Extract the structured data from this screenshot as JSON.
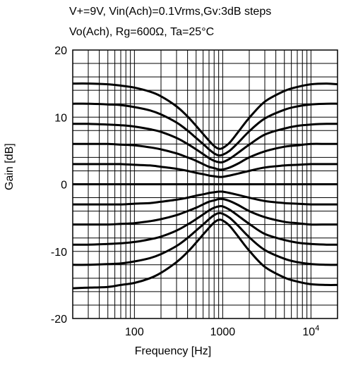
{
  "chart_data": {
    "type": "line",
    "title": "V+=9V, Vin(Ach)=0.1Vrms,Gv:3dB steps",
    "subtitle": "Vo(Ach), Rg=600Ω, Ta=25°C",
    "xlabel": "Frequency  [Hz]",
    "ylabel": "Gain  [dB]",
    "xscale": "log",
    "xlim": [
      20,
      20000
    ],
    "ylim": [
      -20,
      20
    ],
    "grid": true,
    "yticks": [
      {
        "value": 20,
        "label": "20"
      },
      {
        "value": 10,
        "label": "10"
      },
      {
        "value": 0,
        "label": "0"
      },
      {
        "value": -10,
        "label": "-10"
      },
      {
        "value": -20,
        "label": "-20"
      }
    ],
    "xticks": [
      {
        "value": 100,
        "label": "100"
      },
      {
        "value": 1000,
        "label": "1000"
      },
      {
        "value": 10000,
        "label": "10",
        "sup": "4"
      }
    ],
    "x": [
      20,
      30,
      50,
      70,
      100,
      150,
      200,
      300,
      400,
      500,
      600,
      700,
      800,
      900,
      1000,
      1200,
      1500,
      2000,
      3000,
      5000,
      7000,
      10000,
      15000,
      20000
    ],
    "series": [
      {
        "values": [
          15.0,
          15.0,
          14.9,
          14.7,
          14.4,
          13.8,
          13.1,
          11.6,
          10.1,
          8.7,
          7.5,
          6.5,
          5.7,
          5.3,
          5.4,
          6.2,
          7.8,
          9.9,
          12.3,
          13.9,
          14.5,
          14.9,
          15.0,
          14.9
        ]
      },
      {
        "values": [
          12.0,
          12.0,
          11.9,
          11.8,
          11.5,
          11.0,
          10.4,
          9.2,
          8.0,
          6.9,
          6.0,
          5.2,
          4.6,
          4.3,
          4.4,
          5.0,
          6.2,
          7.9,
          9.8,
          11.1,
          11.6,
          11.9,
          12.0,
          12.0
        ]
      },
      {
        "values": [
          9.0,
          9.0,
          8.9,
          8.8,
          8.6,
          8.2,
          7.8,
          6.9,
          6.0,
          5.2,
          4.5,
          3.9,
          3.5,
          3.3,
          3.3,
          3.8,
          4.7,
          5.9,
          7.4,
          8.3,
          8.7,
          8.9,
          9.0,
          9.0
        ]
      },
      {
        "values": [
          6.0,
          6.0,
          6.0,
          5.9,
          5.8,
          5.5,
          5.2,
          4.6,
          4.0,
          3.5,
          3.0,
          2.6,
          2.4,
          2.2,
          2.2,
          2.5,
          3.1,
          4.0,
          4.9,
          5.6,
          5.8,
          6.0,
          6.0,
          6.0
        ]
      },
      {
        "values": [
          3.0,
          3.0,
          3.0,
          3.0,
          2.9,
          2.8,
          2.6,
          2.3,
          2.0,
          1.7,
          1.5,
          1.3,
          1.2,
          1.1,
          1.1,
          1.3,
          1.6,
          2.0,
          2.5,
          2.8,
          2.9,
          3.0,
          3.0,
          3.0
        ]
      },
      {
        "values": [
          0.0,
          0.0,
          0.0,
          0.0,
          0.0,
          0.0,
          0.0,
          0.0,
          0.0,
          0.0,
          0.0,
          0.0,
          0.0,
          0.0,
          0.0,
          0.0,
          0.0,
          0.0,
          0.0,
          0.0,
          0.0,
          0.0,
          0.0,
          0.0
        ]
      },
      {
        "values": [
          -3.0,
          -3.0,
          -3.0,
          -3.0,
          -2.9,
          -2.8,
          -2.6,
          -2.3,
          -2.0,
          -1.7,
          -1.5,
          -1.3,
          -1.2,
          -1.1,
          -1.1,
          -1.3,
          -1.6,
          -2.0,
          -2.5,
          -2.8,
          -2.9,
          -3.0,
          -3.0,
          -3.0
        ]
      },
      {
        "values": [
          -6.0,
          -6.0,
          -6.0,
          -5.9,
          -5.8,
          -5.5,
          -5.2,
          -4.6,
          -4.0,
          -3.5,
          -3.0,
          -2.6,
          -2.4,
          -2.2,
          -2.2,
          -2.5,
          -3.1,
          -4.0,
          -4.9,
          -5.6,
          -5.8,
          -6.0,
          -6.0,
          -6.0
        ]
      },
      {
        "values": [
          -9.0,
          -9.0,
          -8.9,
          -8.8,
          -8.6,
          -8.2,
          -7.8,
          -6.9,
          -6.0,
          -5.2,
          -4.5,
          -3.9,
          -3.5,
          -3.3,
          -3.3,
          -3.8,
          -4.7,
          -5.9,
          -7.4,
          -8.3,
          -8.7,
          -8.9,
          -9.0,
          -9.0
        ]
      },
      {
        "values": [
          -12.0,
          -12.0,
          -11.9,
          -11.8,
          -11.5,
          -11.0,
          -10.4,
          -9.2,
          -8.0,
          -6.9,
          -6.0,
          -5.2,
          -4.6,
          -4.3,
          -4.4,
          -5.0,
          -6.2,
          -7.9,
          -9.8,
          -11.1,
          -11.6,
          -11.9,
          -12.0,
          -12.0
        ]
      },
      {
        "values": [
          -15.5,
          -15.4,
          -15.3,
          -15.0,
          -14.7,
          -14.0,
          -13.2,
          -11.6,
          -10.1,
          -8.7,
          -7.5,
          -6.5,
          -5.7,
          -5.3,
          -5.4,
          -6.2,
          -7.8,
          -9.9,
          -12.3,
          -13.9,
          -14.5,
          -14.9,
          -15.0,
          -15.0
        ]
      }
    ]
  }
}
